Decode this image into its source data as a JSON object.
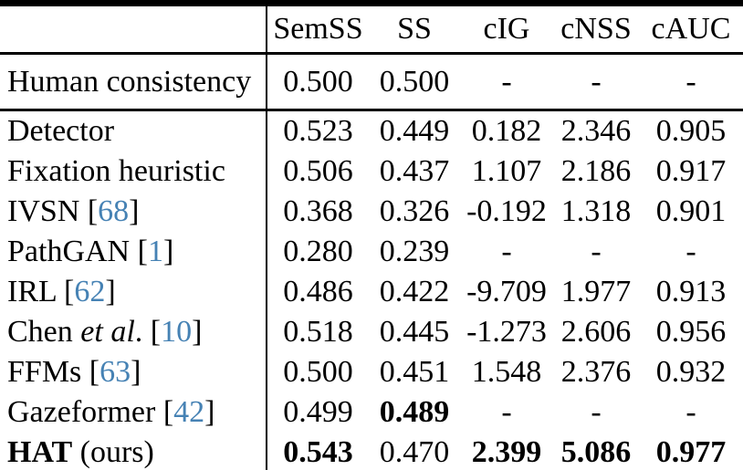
{
  "colors": {
    "background": "#ffffff",
    "text": "#000000",
    "citation": "#4682b4",
    "rule": "#000000"
  },
  "header": {
    "row_label": "",
    "columns": [
      "SemSS",
      "SS",
      "cIG",
      "cNSS",
      "cAUC"
    ]
  },
  "human_section": {
    "rows": [
      {
        "label": [
          {
            "t": "Human consistency",
            "s": "n"
          }
        ],
        "values": [
          {
            "t": "0.500"
          },
          {
            "t": "0.500"
          },
          {
            "t": "-"
          },
          {
            "t": "-"
          },
          {
            "t": "-"
          }
        ]
      }
    ]
  },
  "model_section": {
    "rows": [
      {
        "label": [
          {
            "t": "Detector",
            "s": "n"
          }
        ],
        "values": [
          {
            "t": "0.523"
          },
          {
            "t": "0.449"
          },
          {
            "t": "0.182"
          },
          {
            "t": "2.346"
          },
          {
            "t": "0.905"
          }
        ]
      },
      {
        "label": [
          {
            "t": "Fixation heuristic",
            "s": "n"
          }
        ],
        "values": [
          {
            "t": "0.506"
          },
          {
            "t": "0.437"
          },
          {
            "t": "1.107"
          },
          {
            "t": "2.186"
          },
          {
            "t": "0.917"
          }
        ]
      },
      {
        "label": [
          {
            "t": "IVSN [",
            "s": "n"
          },
          {
            "t": "68",
            "s": "c"
          },
          {
            "t": "]",
            "s": "n"
          }
        ],
        "values": [
          {
            "t": "0.368"
          },
          {
            "t": "0.326"
          },
          {
            "t": "-0.192"
          },
          {
            "t": "1.318"
          },
          {
            "t": "0.901"
          }
        ]
      },
      {
        "label": [
          {
            "t": "PathGAN [",
            "s": "n"
          },
          {
            "t": "1",
            "s": "c"
          },
          {
            "t": "]",
            "s": "n"
          }
        ],
        "values": [
          {
            "t": "0.280"
          },
          {
            "t": "0.239"
          },
          {
            "t": "-"
          },
          {
            "t": "-"
          },
          {
            "t": "-"
          }
        ]
      },
      {
        "label": [
          {
            "t": "IRL [",
            "s": "n"
          },
          {
            "t": "62",
            "s": "c"
          },
          {
            "t": "]",
            "s": "n"
          }
        ],
        "values": [
          {
            "t": "0.486"
          },
          {
            "t": "0.422"
          },
          {
            "t": "-9.709"
          },
          {
            "t": "1.977"
          },
          {
            "t": "0.913"
          }
        ]
      },
      {
        "label": [
          {
            "t": "Chen ",
            "s": "n"
          },
          {
            "t": "et al",
            "s": "i"
          },
          {
            "t": ". [",
            "s": "n"
          },
          {
            "t": "10",
            "s": "c"
          },
          {
            "t": "]",
            "s": "n"
          }
        ],
        "values": [
          {
            "t": "0.518"
          },
          {
            "t": "0.445"
          },
          {
            "t": "-1.273"
          },
          {
            "t": "2.606"
          },
          {
            "t": "0.956"
          }
        ]
      },
      {
        "label": [
          {
            "t": "FFMs [",
            "s": "n"
          },
          {
            "t": "63",
            "s": "c"
          },
          {
            "t": "]",
            "s": "n"
          }
        ],
        "values": [
          {
            "t": "0.500"
          },
          {
            "t": "0.451"
          },
          {
            "t": "1.548"
          },
          {
            "t": "2.376"
          },
          {
            "t": "0.932"
          }
        ]
      },
      {
        "label": [
          {
            "t": "Gazeformer [",
            "s": "n"
          },
          {
            "t": "42",
            "s": "c"
          },
          {
            "t": "]",
            "s": "n"
          }
        ],
        "values": [
          {
            "t": "0.499"
          },
          {
            "t": "0.489",
            "b": true
          },
          {
            "t": "-"
          },
          {
            "t": "-"
          },
          {
            "t": "-"
          }
        ]
      },
      {
        "label": [
          {
            "t": "HAT",
            "s": "b"
          },
          {
            "t": " (ours)",
            "s": "n"
          }
        ],
        "values": [
          {
            "t": "0.543",
            "b": true
          },
          {
            "t": "0.470"
          },
          {
            "t": "2.399",
            "b": true
          },
          {
            "t": "5.086",
            "b": true
          },
          {
            "t": "0.977",
            "b": true
          }
        ]
      }
    ]
  }
}
